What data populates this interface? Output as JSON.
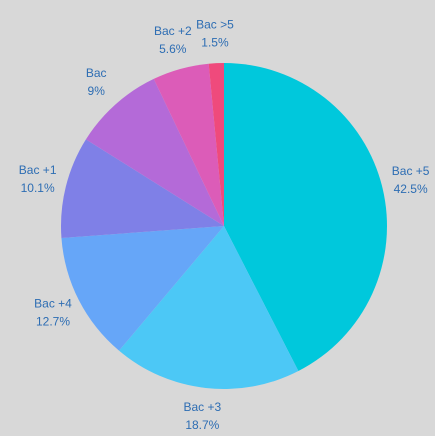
{
  "chart_data": {
    "type": "pie",
    "categories": [
      "Bac +5",
      "Bac +3",
      "Bac +4",
      "Bac +1",
      "Bac",
      "Bac +2",
      "Bac >5"
    ],
    "values": [
      42.5,
      18.7,
      12.7,
      10.1,
      9,
      5.6,
      1.5
    ],
    "value_labels": [
      "42.5%",
      "18.7%",
      "12.7%",
      "10.1%",
      "9%",
      "5.6%",
      "1.5%"
    ],
    "colors": [
      "#00c8dc",
      "#4cc8f6",
      "#66a6f8",
      "#7f80e7",
      "#b46ad8",
      "#dc5cb8",
      "#ef4a7c"
    ]
  }
}
